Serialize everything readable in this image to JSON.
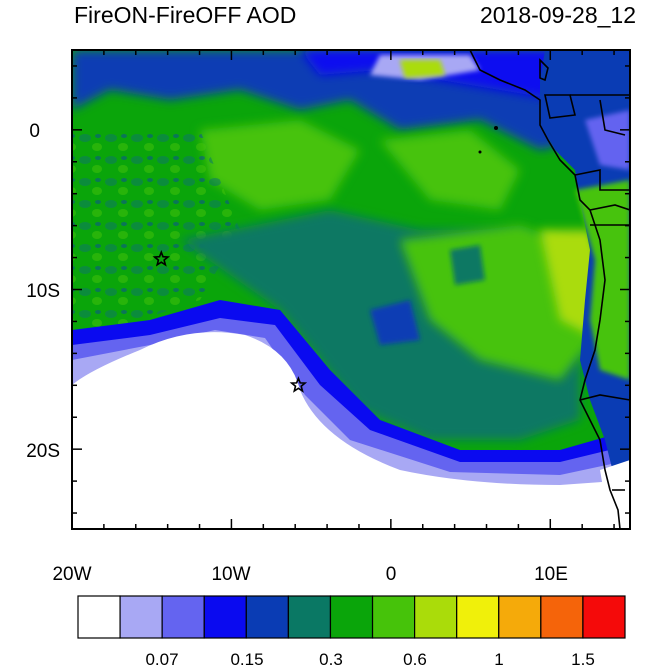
{
  "title": "FireON-FireOFF AOD",
  "datetime": "2018-09-28_12",
  "axes": {
    "x_ticks": [
      "20W",
      "10W",
      "0",
      "10E"
    ],
    "y_ticks": [
      "0",
      "10S",
      "20S"
    ]
  },
  "colorbar": {
    "colors": [
      "#ffffff",
      "#a8a8f4",
      "#6464f0",
      "#0a0af0",
      "#0a3cb4",
      "#0a7864",
      "#0aa50a",
      "#46c30a",
      "#aadc0a",
      "#f0f00a",
      "#f5aa0a",
      "#f5640a",
      "#f50a0a"
    ],
    "labels": [
      "0.07",
      "0.15",
      "0.3",
      "0.6",
      "1",
      "1.5"
    ]
  },
  "markers": [
    {
      "name": "star-marker-1",
      "lon": -14.4,
      "lat": -8.1
    },
    {
      "name": "star-marker-2",
      "lon": -5.8,
      "lat": -16.0
    }
  ]
}
